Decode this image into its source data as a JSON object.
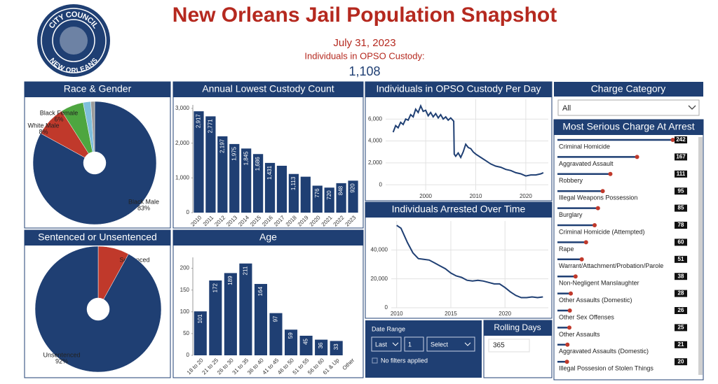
{
  "header": {
    "title": "New Orleans Jail Population Snapshot",
    "date": "July 31, 2023",
    "subtitle": "Individuals in OPSO Custody:",
    "count": "1,108",
    "logo_top": "CITY COUNCIL",
    "logo_bottom": "NEW ORLEANS"
  },
  "filters": {
    "charge_category": {
      "title": "Charge Category",
      "selected": "All"
    },
    "date_range": {
      "title": "Date Range",
      "mode": "Last",
      "amount": "1",
      "unit": "Select",
      "status": "No filters applied"
    },
    "rolling_days": {
      "title": "Rolling Days",
      "value": "365"
    }
  },
  "chart_data": [
    {
      "type": "pie",
      "title": "Race & Gender",
      "categories": [
        "Black Male",
        "White Male",
        "Black Female",
        null,
        null
      ],
      "values": [
        83,
        8,
        6,
        2,
        1
      ],
      "value_labels": [
        "83%",
        "8%",
        "6%",
        null,
        null
      ],
      "colors": [
        "#1f3f73",
        "#c0392b",
        "#4ea640",
        "#7fbfdc",
        "#9a9a9a"
      ]
    },
    {
      "type": "bar",
      "title": "Annual Lowest Custody Count",
      "categories": [
        "2010",
        "2011",
        "2012",
        "2013",
        "2014",
        "2015",
        "2016",
        "2017",
        "2018",
        "2019",
        "2020",
        "2021",
        "2022",
        "2023"
      ],
      "values": [
        2917,
        2771,
        2197,
        1975,
        1845,
        1686,
        1431,
        1349,
        1113,
        1034,
        776,
        720,
        848,
        920
      ],
      "value_labels": [
        "2,917",
        "2,771",
        "2,197",
        "1,975",
        "1,845",
        "1,686",
        "1,431",
        null,
        "1,113",
        null,
        "776",
        "720",
        "848",
        "920"
      ],
      "color": "#1f3f73",
      "ylim": [
        0,
        3100
      ],
      "yticks": [
        0,
        {
          "value": 1000,
          "label": "1,000"
        },
        {
          "value": 2000,
          "label": "2,000"
        },
        {
          "value": 3000,
          "label": "3,000"
        }
      ]
    },
    {
      "type": "line",
      "title": "Individuals in OPSO Custody Per Day",
      "x": [
        1993.5,
        1994,
        1994.5,
        1995,
        1995.5,
        1996,
        1996.5,
        1997,
        1997.5,
        1998,
        1998.5,
        1999,
        1999.5,
        2000,
        2000.5,
        2001,
        2001.5,
        2002,
        2002.5,
        2003,
        2003.5,
        2004,
        2004.5,
        2005,
        2005.6,
        2005.7,
        2006,
        2006.5,
        2007,
        2007.5,
        2008,
        2008.5,
        2009,
        2009.5,
        2010,
        2011,
        2012,
        2013,
        2014,
        2015,
        2016,
        2017,
        2018,
        2019,
        2020,
        2021,
        2022,
        2023,
        2023.5
      ],
      "values": [
        4800,
        5400,
        5200,
        5700,
        5500,
        6000,
        5900,
        6400,
        6200,
        6900,
        6600,
        7200,
        6700,
        6800,
        6300,
        6600,
        6200,
        6500,
        6100,
        6400,
        6000,
        6200,
        5900,
        6100,
        5800,
        2800,
        2600,
        2900,
        2500,
        3000,
        3700,
        3400,
        3300,
        3000,
        2800,
        2500,
        2200,
        1900,
        1700,
        1600,
        1400,
        1300,
        1100,
        1000,
        800,
        900,
        900,
        1000,
        1100
      ],
      "color": "#1f3f73",
      "xlim": [
        1992,
        2024.5
      ],
      "xticks": [
        2000,
        2010,
        2020
      ],
      "ylim": [
        -500,
        7800
      ],
      "yticks": [
        0,
        {
          "value": 2000,
          "label": "2,000"
        },
        {
          "value": 4000,
          "label": "4,000"
        },
        {
          "value": 6000,
          "label": "6,000"
        }
      ],
      "grid": true
    },
    {
      "type": "line",
      "title": "Individuals Arrested Over Time",
      "x": [
        2010,
        2010.4,
        2011,
        2011.5,
        2012,
        2012.5,
        2013,
        2013.5,
        2014,
        2014.5,
        2015,
        2015.5,
        2016,
        2016.5,
        2017,
        2017.5,
        2018,
        2018.5,
        2019,
        2019.5,
        2020,
        2020.5,
        2021,
        2021.5,
        2022,
        2022.5,
        2023,
        2023.5
      ],
      "values": [
        57000,
        55000,
        45000,
        38000,
        34000,
        33500,
        33000,
        31000,
        29000,
        27000,
        24000,
        22000,
        21000,
        19000,
        18500,
        19000,
        18500,
        17500,
        16500,
        16500,
        14000,
        11000,
        8500,
        7000,
        7000,
        7500,
        7000,
        7500
      ],
      "color": "#1f3f73",
      "xlim": [
        2009.5,
        2024
      ],
      "xticks": [
        2010,
        2015,
        2020
      ],
      "ylim": [
        0,
        60000
      ],
      "yticks": [
        0,
        {
          "value": 20000,
          "label": "20,000"
        },
        {
          "value": 40000,
          "label": "40,000"
        }
      ],
      "grid": true
    },
    {
      "type": "pie",
      "title": "Sentenced or Unsentenced",
      "categories": [
        "Sentenced",
        "Unsentenced"
      ],
      "values": [
        8,
        92
      ],
      "value_labels": [
        "8%",
        "92%"
      ],
      "colors": [
        "#c0392b",
        "#1f3f73"
      ]
    },
    {
      "type": "bar",
      "title": "Age",
      "categories": [
        "18 to 20",
        "21 to 25",
        "26 to 30",
        "31 to 35",
        "36 to 40",
        "41 to 45",
        "46 to 50",
        "51 to 55",
        "56 to 60",
        "61 & Up",
        "Other"
      ],
      "values": [
        101,
        172,
        189,
        211,
        164,
        97,
        59,
        45,
        36,
        33,
        null
      ],
      "color": "#1f3f73",
      "ylim": [
        0,
        225
      ],
      "yticks": [
        0,
        50,
        100,
        150,
        200
      ]
    },
    {
      "type": "lollipop",
      "title": "Most Serious Charge At Arrest",
      "categories": [
        "Criminal Homicide",
        "Aggravated Assault",
        "Robbery",
        "Illegal Weapons Possession",
        "Burglary",
        "Criminal Homicide (Attempted)",
        "Rape",
        "Warrant/Attachment/Probation/Parole",
        "Non-Negligent Manslaughter",
        "Other Assaults (Domestic)",
        "Other Sex Offenses",
        "Other Assaults",
        "Aggravated Assaults (Domestic)",
        "Illegal Possesion of Stolen Things"
      ],
      "values": [
        242,
        167,
        111,
        95,
        85,
        78,
        60,
        51,
        38,
        28,
        26,
        25,
        21,
        20
      ],
      "color": "#1f3f73",
      "dot_color": "#c0392b",
      "xlim": [
        0,
        250
      ]
    }
  ]
}
